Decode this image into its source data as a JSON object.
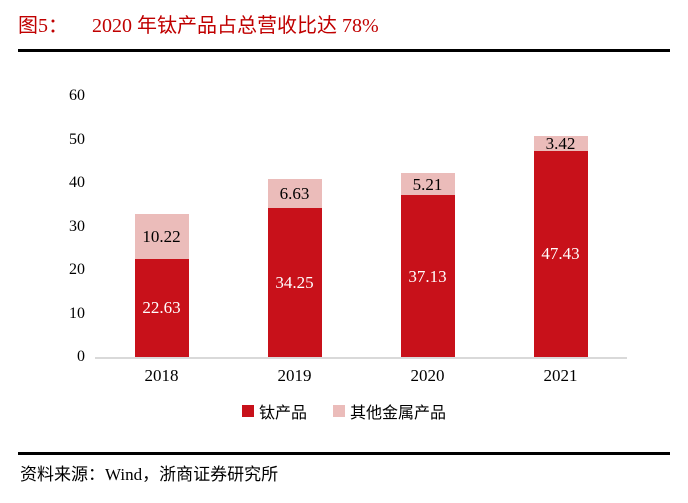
{
  "header": {
    "figure_label": "图5：",
    "title": "2020 年钛产品占总营收比达 78%"
  },
  "chart_data": {
    "type": "bar",
    "stacked": true,
    "title": "2020 年钛产品占总营收比达 78%",
    "categories": [
      "2018",
      "2019",
      "2020",
      "2021"
    ],
    "series": [
      {
        "name": "钛产品",
        "color": "#c8111a",
        "label_color": "#ffffff",
        "values": [
          22.63,
          34.25,
          37.13,
          47.43
        ]
      },
      {
        "name": "其他金属产品",
        "color": "#ebbcba",
        "label_color": "#000000",
        "values": [
          10.22,
          6.63,
          5.21,
          3.42
        ]
      }
    ],
    "xlabel": "",
    "ylabel": "",
    "ylim": [
      0,
      60
    ],
    "yticks": [
      0,
      10,
      20,
      30,
      40,
      50,
      60
    ],
    "grid": false,
    "legend_position": "bottom",
    "axis_line_color": "#d9d9d9"
  },
  "footer": {
    "source": "资料来源：Wind，浙商证券研究所"
  },
  "colors": {
    "title_red": "#c00000",
    "bar_red": "#c8111a",
    "bar_pink": "#ebbcba",
    "rule_black": "#000000"
  }
}
